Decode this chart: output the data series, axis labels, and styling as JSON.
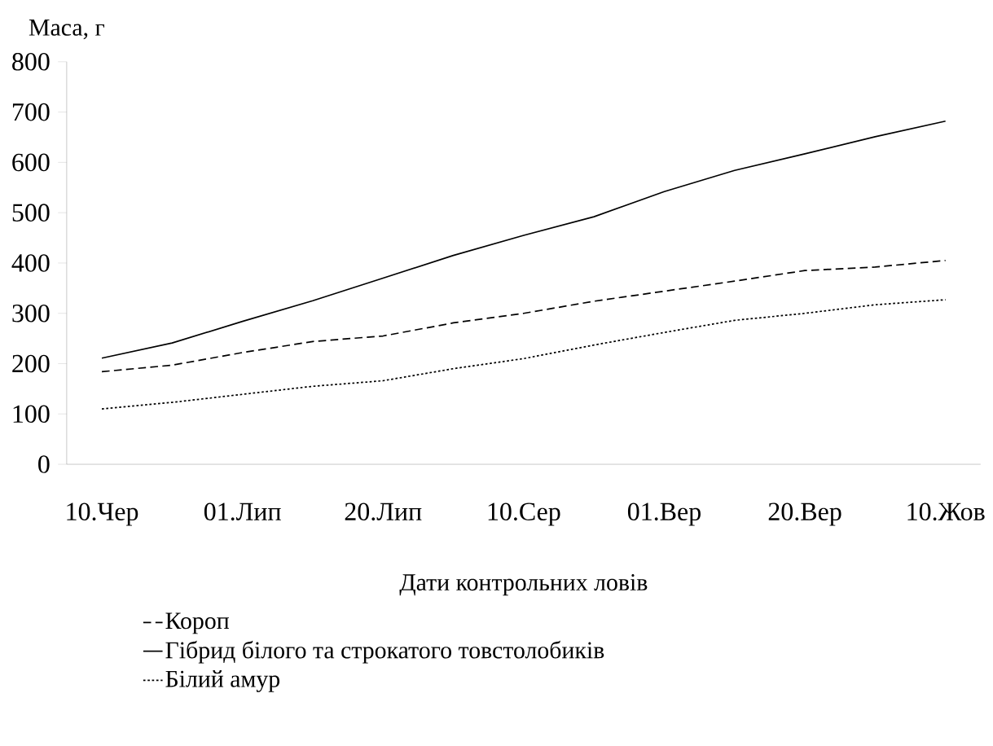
{
  "chart_data": {
    "type": "line",
    "ylabel": "Маса, г",
    "xlabel": "Дати контрольних ловів",
    "categories": [
      "10.Чер",
      null,
      "01.Лип",
      null,
      "20.Лип",
      null,
      "10.Сер",
      null,
      "01.Вер",
      null,
      "20.Вер",
      null,
      "10.Жов"
    ],
    "ylim": [
      0,
      800
    ],
    "yticks": [
      0,
      100,
      200,
      300,
      400,
      500,
      600,
      700,
      800
    ],
    "legend": "bottom",
    "grid": false,
    "marker": "none",
    "series": [
      {
        "name": "Короп",
        "color": "#000000",
        "line_style": "dashed",
        "values": [
          184,
          197,
          222,
          244,
          255,
          281,
          300,
          324,
          344,
          364,
          385,
          392,
          405
        ]
      },
      {
        "name": "Гібрид білого та строкатого товстолобиків",
        "color": "#000000",
        "line_style": "solid",
        "values": [
          211,
          241,
          284,
          325,
          370,
          415,
          455,
          492,
          542,
          584,
          617,
          651,
          682
        ]
      },
      {
        "name": "Білий амур",
        "color": "#000000",
        "line_style": "dotted",
        "values": [
          110,
          123,
          139,
          155,
          166,
          190,
          210,
          237,
          262,
          286,
          300,
          317,
          327
        ]
      }
    ]
  }
}
